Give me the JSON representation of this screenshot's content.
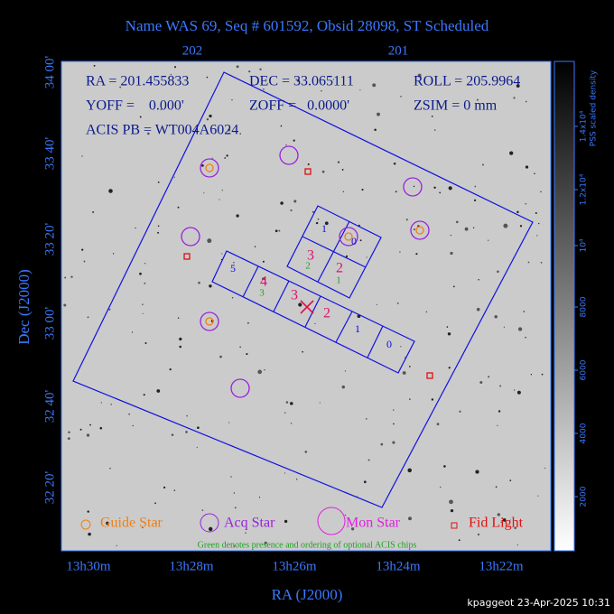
{
  "title": "Name WAS 69, Seq # 601592, Obsid 28098, ST Scheduled",
  "axes": {
    "top_ticks": [
      "202",
      "201"
    ],
    "left_ticks": [
      "34 00'",
      "33 40'",
      "33 20'",
      "33 00'",
      "32 40'",
      "32 20'"
    ],
    "bottom_ticks": [
      "13h30m",
      "13h28m",
      "13h26m",
      "13h24m",
      "13h22m"
    ],
    "x_label": "RA (J2000)",
    "y_label": "Dec (J2000)"
  },
  "info": {
    "ra": "RA = 201.455833",
    "dec": "DEC = 33.065111",
    "roll": "ROLL = 205.9964",
    "yoff": "YOFF =    0.000'",
    "zoff": "ZOFF =   0.0000'",
    "zsim": "ZSIM = 0 mm",
    "acis": "ACIS PB = WT004A6024"
  },
  "chips": {
    "i_array": [
      "1",
      "0",
      "3",
      "2"
    ],
    "s_array": [
      "5",
      "4",
      "3",
      "2",
      "1",
      "0"
    ],
    "optional": [
      "2",
      "1",
      "3"
    ]
  },
  "legend": [
    "Guide Star",
    "Acq Star",
    "Mon Star",
    "Fid Light"
  ],
  "note": "Green denotes presence and ordering of optional ACIS chips",
  "colorbar": {
    "ticks": [
      "2000",
      "4000",
      "6000",
      "8000",
      "10⁴",
      "1.2x10⁴",
      "1.4x10⁴"
    ],
    "label": "PSS scaled density"
  },
  "footer": "kpaggeot 23-Apr-2025 10:31"
}
